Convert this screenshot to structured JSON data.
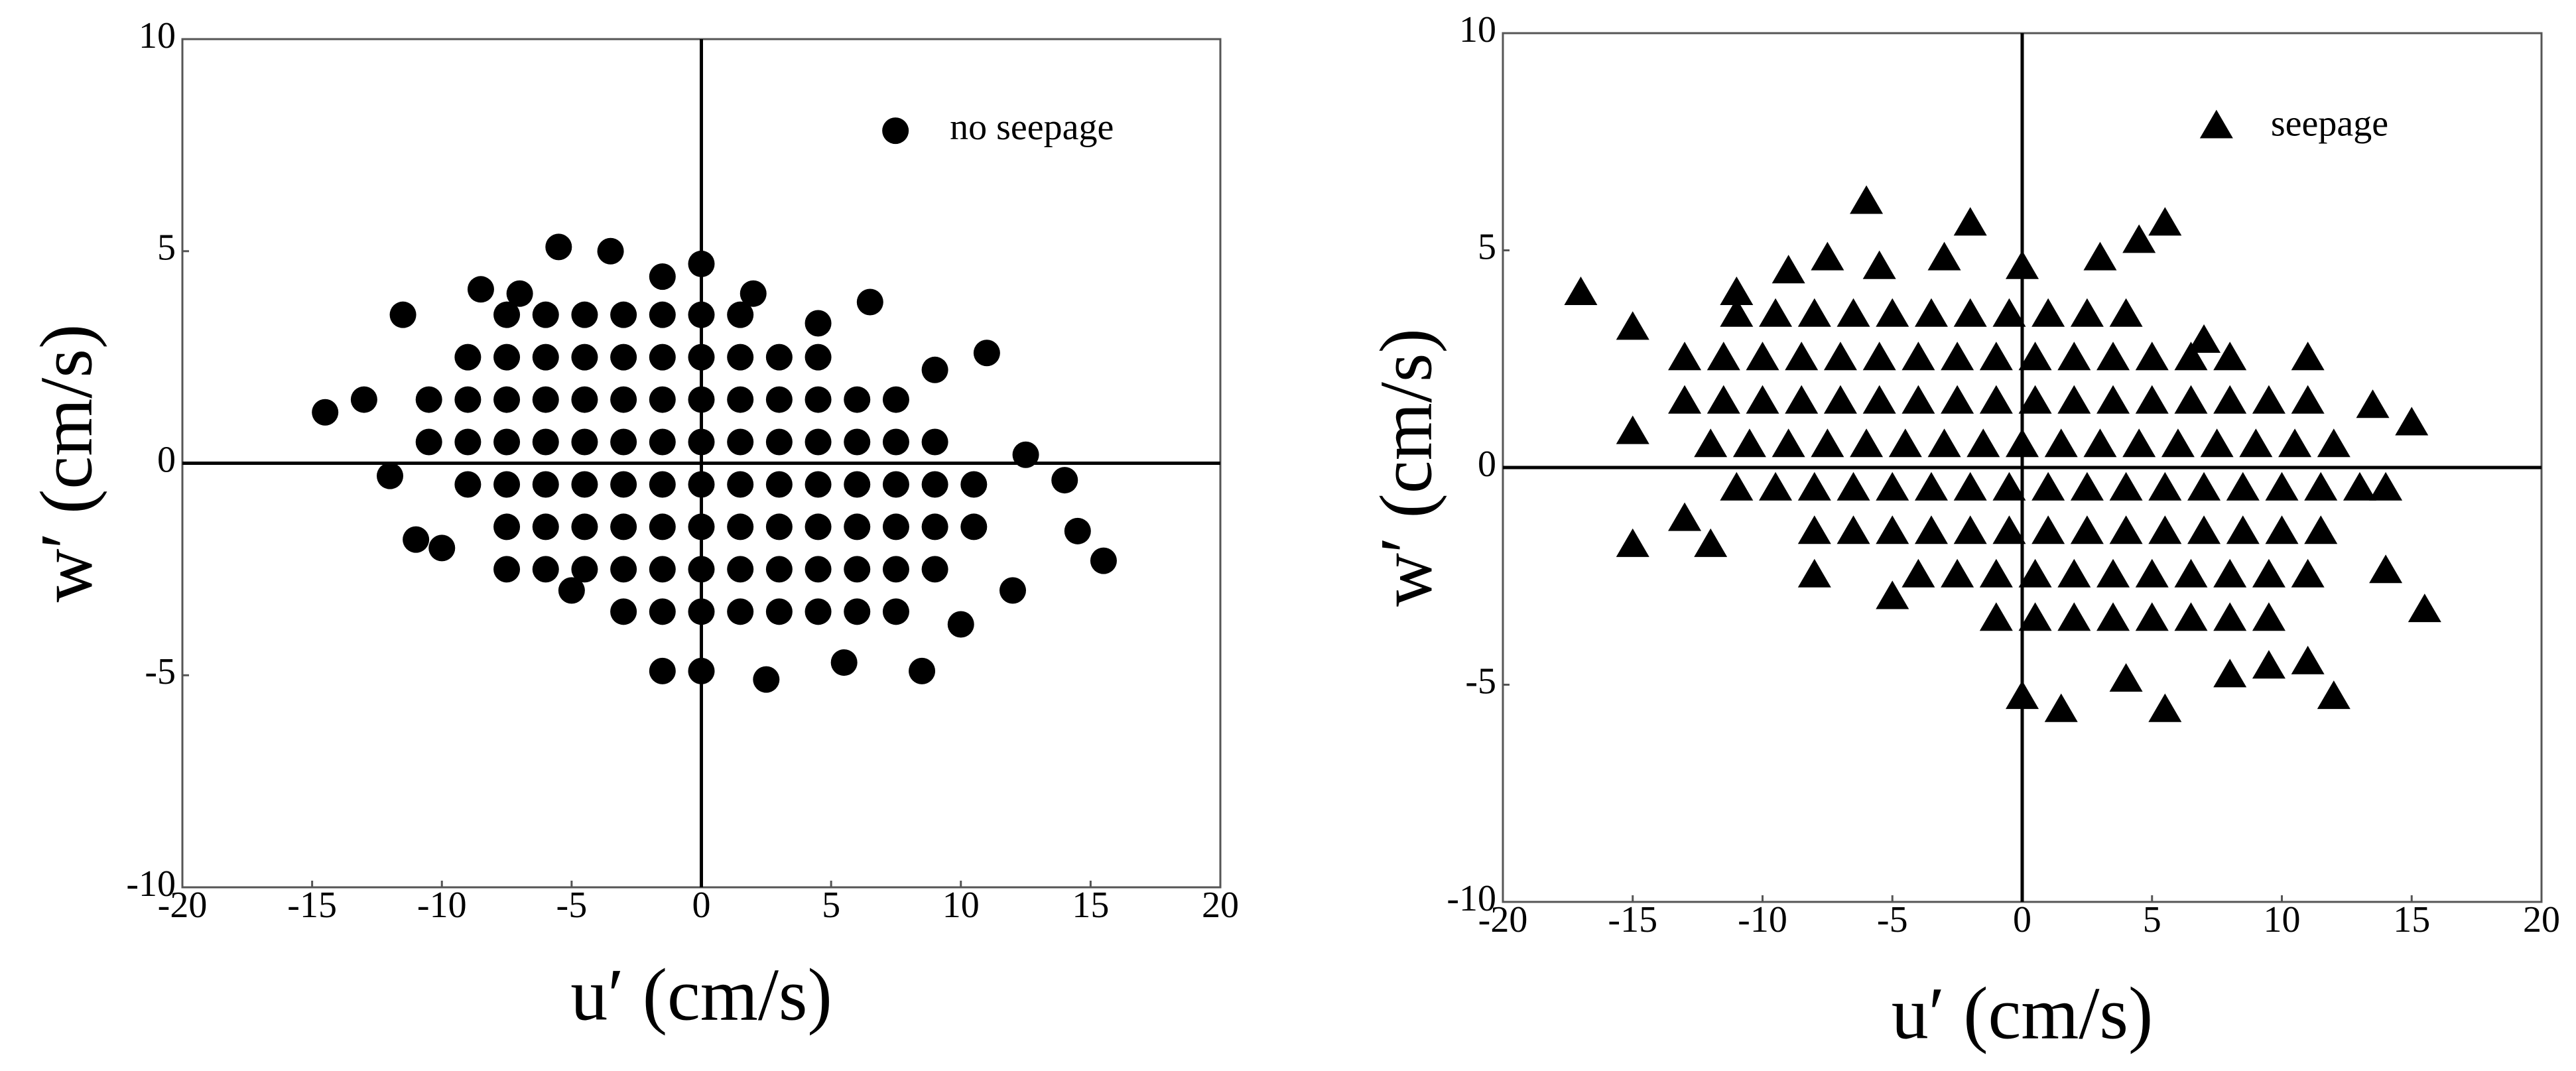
{
  "chart_data": [
    {
      "type": "scatter",
      "xlabel": "u′ (cm/s)",
      "ylabel": "w′ (cm/s)",
      "xlim": [
        -20,
        20
      ],
      "ylim": [
        -10,
        10
      ],
      "xticks": [
        -20,
        -15,
        -10,
        -5,
        0,
        5,
        10,
        15,
        20
      ],
      "yticks": [
        -10,
        -5,
        0,
        5,
        10
      ],
      "zero_lines": true,
      "legend": "upper right",
      "series": [
        {
          "name": "no seepage",
          "color": "#000000",
          "marker": "circle",
          "x": [
            -14.5,
            -13,
            -11.5,
            -12,
            -11,
            -10,
            -8.5,
            -7,
            -5.5,
            -3.5,
            -1.5,
            0,
            2,
            4.5,
            6.5,
            9,
            11,
            12.5,
            14,
            15.5,
            14.5,
            12,
            10,
            8.5,
            5.5,
            2.5,
            0,
            -1.5,
            -5,
            -7.5,
            -7.5,
            -6,
            -4.5,
            -3,
            -1.5,
            0,
            1.5,
            -9,
            -7.5,
            -6,
            -4.5,
            -3,
            -1.5,
            0,
            1.5,
            3,
            4.5,
            -10.5,
            -9,
            -7.5,
            -6,
            -4.5,
            -3,
            -1.5,
            0,
            1.5,
            3,
            4.5,
            6,
            7.5,
            -10.5,
            -9,
            -7.5,
            -6,
            -4.5,
            -3,
            -1.5,
            0,
            1.5,
            3,
            4.5,
            6,
            7.5,
            9,
            -9,
            -7.5,
            -6,
            -4.5,
            -3,
            -1.5,
            0,
            1.5,
            3,
            4.5,
            6,
            7.5,
            9,
            10.5,
            -7.5,
            -6,
            -4.5,
            -3,
            -1.5,
            0,
            1.5,
            3,
            4.5,
            6,
            7.5,
            9,
            10.5,
            -6,
            -4.5,
            -3,
            -1.5,
            0,
            1.5,
            3,
            4.5,
            6,
            7.5,
            9,
            -3,
            -1.5,
            0,
            1.5,
            3,
            4.5,
            6,
            7.5
          ],
          "values": [
            1.2,
            1.5,
            3.5,
            -0.3,
            -1.8,
            -2,
            4.1,
            4,
            5.1,
            5,
            4.4,
            4.7,
            4,
            3.3,
            3.8,
            2.2,
            2.6,
            0.2,
            -0.4,
            -2.3,
            -1.6,
            -3,
            -3.8,
            -4.9,
            -4.7,
            -5.1,
            -4.9,
            -4.9,
            -3,
            -2.5,
            3.5,
            3.5,
            3.5,
            3.5,
            3.5,
            3.5,
            3.5,
            2.5,
            2.5,
            2.5,
            2.5,
            2.5,
            2.5,
            2.5,
            2.5,
            2.5,
            2.5,
            1.5,
            1.5,
            1.5,
            1.5,
            1.5,
            1.5,
            1.5,
            1.5,
            1.5,
            1.5,
            1.5,
            1.5,
            1.5,
            0.5,
            0.5,
            0.5,
            0.5,
            0.5,
            0.5,
            0.5,
            0.5,
            0.5,
            0.5,
            0.5,
            0.5,
            0.5,
            0.5,
            -0.5,
            -0.5,
            -0.5,
            -0.5,
            -0.5,
            -0.5,
            -0.5,
            -0.5,
            -0.5,
            -0.5,
            -0.5,
            -0.5,
            -0.5,
            -0.5,
            -1.5,
            -1.5,
            -1.5,
            -1.5,
            -1.5,
            -1.5,
            -1.5,
            -1.5,
            -1.5,
            -1.5,
            -1.5,
            -1.5,
            -1.5,
            -2.5,
            -2.5,
            -2.5,
            -2.5,
            -2.5,
            -2.5,
            -2.5,
            -2.5,
            -2.5,
            -2.5,
            -2.5,
            -3.5,
            -3.5,
            -3.5,
            -3.5,
            -3.5,
            -3.5,
            -3.5,
            -3.5
          ]
        }
      ]
    },
    {
      "type": "scatter",
      "xlabel": "u′ (cm/s)",
      "ylabel": "w′ (cm/s)",
      "xlim": [
        -20,
        20
      ],
      "ylim": [
        -10,
        10
      ],
      "xticks": [
        -20,
        -15,
        -10,
        -5,
        0,
        5,
        10,
        15,
        20
      ],
      "yticks": [
        -10,
        -5,
        0,
        5,
        10
      ],
      "zero_lines": true,
      "legend": "upper right",
      "series": [
        {
          "name": "seepage",
          "color": "#000000",
          "marker": "triangle",
          "x": [
            -17,
            -15,
            -15,
            -15,
            -13,
            -12,
            -11,
            -9,
            -7.5,
            -6,
            -5.5,
            -3,
            -2,
            0,
            3,
            4.5,
            5.5,
            7,
            11,
            13.5,
            15,
            14,
            15.5,
            14,
            12,
            11,
            9.5,
            8,
            5.5,
            4,
            1.5,
            0,
            -5,
            -8,
            -11,
            -9.5,
            -8,
            -6.5,
            -5,
            -3.5,
            -2,
            -0.5,
            1,
            2.5,
            4,
            -13,
            -11.5,
            -10,
            -8.5,
            -7,
            -5.5,
            -4,
            -2.5,
            -1,
            0.5,
            2,
            3.5,
            5,
            6.5,
            8,
            -13,
            -11.5,
            -10,
            -8.5,
            -7,
            -5.5,
            -4,
            -2.5,
            -1,
            0.5,
            2,
            3.5,
            5,
            6.5,
            8,
            9.5,
            11,
            -12,
            -10.5,
            -9,
            -7.5,
            -6,
            -4.5,
            -3,
            -1.5,
            0,
            1.5,
            3,
            4.5,
            6,
            7.5,
            9,
            10.5,
            12,
            -11,
            -9.5,
            -8,
            -6.5,
            -5,
            -3.5,
            -2,
            -0.5,
            1,
            2.5,
            4,
            5.5,
            7,
            8.5,
            10,
            11.5,
            13,
            -8,
            -6.5,
            -5,
            -3.5,
            -2,
            -0.5,
            1,
            2.5,
            4,
            5.5,
            7,
            8.5,
            10,
            11.5,
            -4,
            -2.5,
            -1,
            0.5,
            2,
            3.5,
            5,
            6.5,
            8,
            9.5,
            11,
            -1,
            0.5,
            2,
            3.5,
            5,
            6.5,
            8,
            9.5
          ],
          "values": [
            4,
            3.2,
            0.8,
            -1.8,
            -1.2,
            -1.8,
            4,
            4.5,
            4.8,
            6.1,
            4.6,
            4.8,
            5.6,
            4.6,
            4.8,
            5.2,
            5.6,
            2.9,
            2.5,
            1.4,
            1,
            -0.5,
            -3.3,
            -2.4,
            -5.3,
            -4.5,
            -4.6,
            -4.8,
            -5.6,
            -4.9,
            -5.6,
            -5.3,
            -3,
            -2.5,
            3.5,
            3.5,
            3.5,
            3.5,
            3.5,
            3.5,
            3.5,
            3.5,
            3.5,
            3.5,
            3.5,
            2.5,
            2.5,
            2.5,
            2.5,
            2.5,
            2.5,
            2.5,
            2.5,
            2.5,
            2.5,
            2.5,
            2.5,
            2.5,
            2.5,
            2.5,
            1.5,
            1.5,
            1.5,
            1.5,
            1.5,
            1.5,
            1.5,
            1.5,
            1.5,
            1.5,
            1.5,
            1.5,
            1.5,
            1.5,
            1.5,
            1.5,
            1.5,
            0.5,
            0.5,
            0.5,
            0.5,
            0.5,
            0.5,
            0.5,
            0.5,
            0.5,
            0.5,
            0.5,
            0.5,
            0.5,
            0.5,
            0.5,
            0.5,
            0.5,
            -0.5,
            -0.5,
            -0.5,
            -0.5,
            -0.5,
            -0.5,
            -0.5,
            -0.5,
            -0.5,
            -0.5,
            -0.5,
            -0.5,
            -0.5,
            -0.5,
            -0.5,
            -0.5,
            -0.5,
            -1.5,
            -1.5,
            -1.5,
            -1.5,
            -1.5,
            -1.5,
            -1.5,
            -1.5,
            -1.5,
            -1.5,
            -1.5,
            -1.5,
            -1.5,
            -1.5,
            -2.5,
            -2.5,
            -2.5,
            -2.5,
            -2.5,
            -2.5,
            -2.5,
            -2.5,
            -2.5,
            -2.5,
            -2.5,
            -3.5,
            -3.5,
            -3.5,
            -3.5,
            -3.5,
            -3.5,
            -3.5,
            -3.5
          ]
        }
      ]
    }
  ]
}
